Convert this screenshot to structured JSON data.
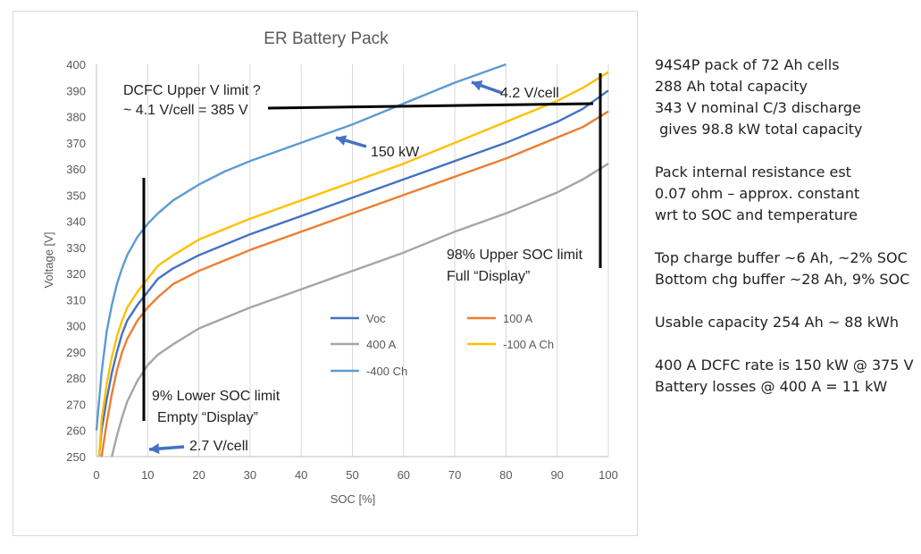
{
  "chart_data": {
    "type": "line",
    "title": "ER Battery Pack",
    "xlabel": "SOC [%]",
    "ylabel": "Voltage [V]",
    "xlim": [
      0,
      100
    ],
    "ylim": [
      250,
      400
    ],
    "xticks": [
      0,
      10,
      20,
      30,
      40,
      50,
      60,
      70,
      80,
      90,
      100
    ],
    "yticks": [
      250,
      260,
      270,
      280,
      290,
      300,
      310,
      320,
      330,
      340,
      350,
      360,
      370,
      380,
      390,
      400
    ],
    "grid": "vertical",
    "legend_position": "lower-right-inside",
    "series": [
      {
        "name": "Voc",
        "color": "#4472C4",
        "x": [
          0.5,
          1,
          2,
          3,
          4,
          5,
          6,
          8,
          10,
          12,
          15,
          20,
          25,
          30,
          40,
          50,
          60,
          70,
          80,
          90,
          95,
          100
        ],
        "y": [
          250,
          260,
          272,
          282,
          290,
          297,
          302,
          308,
          313,
          318,
          322,
          327,
          331,
          335,
          342,
          349,
          356,
          363,
          370,
          378,
          383,
          390
        ]
      },
      {
        "name": "100 A",
        "color": "#ED7D31",
        "x": [
          1,
          2,
          3,
          4,
          5,
          6,
          8,
          10,
          12,
          15,
          20,
          25,
          30,
          40,
          50,
          60,
          70,
          80,
          90,
          95,
          100
        ],
        "y": [
          250,
          263,
          274,
          283,
          290,
          295,
          302,
          307,
          311,
          316,
          321,
          325,
          329,
          336,
          343,
          350,
          357,
          364,
          372,
          376,
          382
        ]
      },
      {
        "name": "400 A",
        "color": "#A5A5A5",
        "x": [
          3,
          4,
          5,
          6,
          8,
          10,
          12,
          15,
          20,
          25,
          30,
          40,
          50,
          60,
          70,
          80,
          90,
          95,
          100
        ],
        "y": [
          250,
          258,
          265,
          271,
          279,
          285,
          289,
          293,
          299,
          303,
          307,
          314,
          321,
          328,
          336,
          343,
          351,
          356,
          362
        ]
      },
      {
        "name": "-100 A Ch",
        "color": "#FFC000",
        "x": [
          0.5,
          1,
          2,
          3,
          4,
          5,
          6,
          8,
          10,
          12,
          15,
          20,
          25,
          30,
          40,
          50,
          60,
          70,
          80,
          90,
          95,
          100
        ],
        "y": [
          250,
          264,
          278,
          288,
          296,
          302,
          307,
          313,
          318,
          323,
          327,
          333,
          337,
          341,
          348,
          355,
          362,
          370,
          378,
          386,
          391,
          397
        ]
      },
      {
        "name": "-400 Ch",
        "color": "#5B9BD5",
        "x": [
          0,
          1,
          2,
          3,
          4,
          5,
          6,
          8,
          10,
          12,
          15,
          20,
          25,
          30,
          40,
          50,
          60,
          70,
          80
        ],
        "y": [
          260,
          282,
          298,
          308,
          316,
          322,
          327,
          334,
          339,
          343,
          348,
          354,
          359,
          363,
          370,
          377,
          385,
          393,
          400
        ]
      }
    ],
    "annotations": [
      "DCFC Upper V limit ?",
      "~ 4.1 V/cell = 385 V",
      "4.2 V/cell",
      "150 kW",
      "98% Upper SOC limit",
      "Full “Display”",
      "9% Lower SOC limit",
      "Empty “Display”",
      "2.7 V/cell"
    ]
  },
  "notes": [
    "94S4P pack of 72 Ah cells",
    "288 Ah total capacity",
    "343 V nominal C/3 discharge",
    " gives 98.8 kW total capacity",
    "",
    "Pack internal resistance est",
    "0.07 ohm – approx. constant",
    "wrt to SOC and temperature",
    "",
    "Top charge buffer ~6 Ah, ~2% SOC",
    "Bottom chg buffer ~28 Ah, 9% SOC",
    "",
    "Usable capacity 254 Ah ~ 88 kWh",
    "",
    "400 A DCFC rate is 150 kW @ 375 V",
    "Battery losses @ 400 A = 11 kW"
  ]
}
